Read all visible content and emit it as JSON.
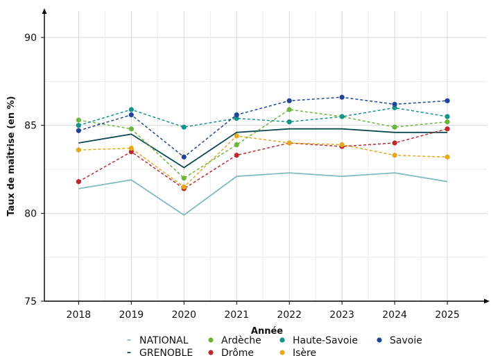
{
  "chart_data": {
    "type": "line",
    "xlabel": "Année",
    "ylabel": "Taux de maîtrise (en %)",
    "x": [
      2018,
      2019,
      2020,
      2021,
      2022,
      2023,
      2024,
      2025
    ],
    "x_tick_labels": [
      "2018",
      "2019",
      "2020",
      "2021",
      "2022",
      "2023",
      "2024",
      "2025"
    ],
    "y_ticks": [
      75,
      80,
      85,
      90
    ],
    "y_tick_labels": [
      "75",
      "80",
      "85",
      "90"
    ],
    "ylim": [
      75,
      91.5
    ],
    "xlim": [
      2017.35,
      2025.75
    ],
    "grid": true,
    "legend_position": "bottom",
    "series": [
      {
        "name": "NATIONAL",
        "color": "#7fbac2",
        "style": "solid",
        "markers": false,
        "values": [
          81.4,
          81.9,
          79.9,
          82.1,
          82.3,
          82.1,
          82.3,
          81.8
        ]
      },
      {
        "name": "GRENOBLE",
        "color": "#0c4a52",
        "style": "solid",
        "markers": false,
        "values": [
          84.0,
          84.5,
          82.6,
          84.6,
          84.8,
          84.8,
          84.6,
          84.6
        ]
      },
      {
        "name": "Ardèche",
        "color": "#6bb63a",
        "style": "dashed",
        "markers": true,
        "values": [
          85.3,
          84.8,
          82.0,
          83.9,
          85.9,
          85.5,
          84.9,
          85.2
        ]
      },
      {
        "name": "Drôme",
        "color": "#c0272d",
        "style": "dashed",
        "markers": true,
        "values": [
          81.8,
          83.5,
          81.4,
          83.3,
          84.0,
          83.8,
          84.0,
          84.8
        ]
      },
      {
        "name": "Haute-Savoie",
        "color": "#0f9688",
        "style": "dashed",
        "markers": true,
        "values": [
          85.0,
          85.9,
          84.9,
          85.4,
          85.2,
          85.5,
          86.0,
          85.5
        ]
      },
      {
        "name": "Isère",
        "color": "#e6a817",
        "style": "dashed",
        "markers": true,
        "values": [
          83.6,
          83.7,
          81.5,
          84.4,
          84.0,
          83.9,
          83.3,
          83.2
        ]
      },
      {
        "name": "Savoie",
        "color": "#20449a",
        "style": "dashed",
        "markers": true,
        "values": [
          84.7,
          85.6,
          83.2,
          85.6,
          86.4,
          86.6,
          86.2,
          86.4
        ]
      }
    ]
  }
}
